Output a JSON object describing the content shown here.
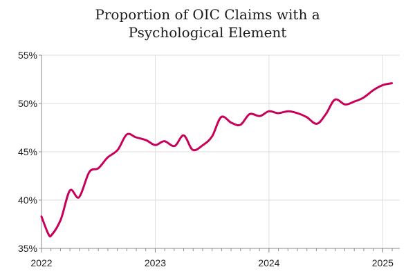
{
  "chart_data": {
    "type": "line",
    "title": "Proportion of OIC Claims with a Psychological Element",
    "title_lines": [
      "Proportion of OIC Claims with a",
      "Psychological Element"
    ],
    "xlabel": "",
    "ylabel": "",
    "ylim": [
      35,
      55
    ],
    "xlim": [
      2022.0,
      2025.15
    ],
    "y_ticks": [
      35,
      40,
      45,
      50,
      55
    ],
    "y_tick_labels": [
      "35%",
      "40%",
      "45%",
      "50%",
      "55%"
    ],
    "x_ticks": [
      2022,
      2023,
      2024,
      2025
    ],
    "x_tick_labels": [
      "2022",
      "2023",
      "2024",
      "2025"
    ],
    "grid": true,
    "legend": "none",
    "series": [
      {
        "name": "Proportion of OIC Claims with a Psychological Element",
        "color": "#c8005a",
        "x": [
          2022.0,
          2022.06,
          2022.09,
          2022.17,
          2022.25,
          2022.33,
          2022.42,
          2022.5,
          2022.58,
          2022.67,
          2022.75,
          2022.83,
          2022.92,
          2023.0,
          2023.08,
          2023.17,
          2023.25,
          2023.33,
          2023.42,
          2023.5,
          2023.58,
          2023.67,
          2023.75,
          2023.83,
          2023.92,
          2024.0,
          2024.08,
          2024.17,
          2024.25,
          2024.33,
          2024.42,
          2024.5,
          2024.58,
          2024.67,
          2024.75,
          2024.83,
          2024.92,
          2025.0,
          2025.08
        ],
        "values": [
          38.3,
          36.5,
          36.4,
          38.0,
          41.0,
          40.3,
          42.9,
          43.3,
          44.4,
          45.2,
          46.8,
          46.5,
          46.2,
          45.7,
          46.1,
          45.6,
          46.7,
          45.2,
          45.7,
          46.6,
          48.6,
          48.0,
          47.8,
          48.9,
          48.7,
          49.2,
          49.0,
          49.2,
          49.0,
          48.6,
          47.9,
          48.9,
          50.4,
          49.9,
          50.2,
          50.6,
          51.4,
          51.9,
          52.1
        ]
      }
    ]
  }
}
